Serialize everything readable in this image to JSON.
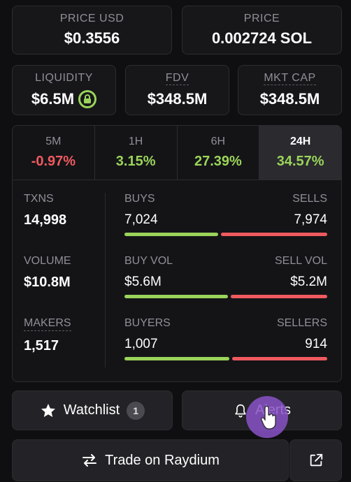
{
  "price_usd": {
    "label": "PRICE USD",
    "value": "$0.3556"
  },
  "price_sol": {
    "label": "PRICE",
    "value": "0.002724 SOL"
  },
  "liquidity": {
    "label": "LIQUIDITY",
    "value": "$6.5M"
  },
  "fdv": {
    "label": "FDV",
    "value": "$348.5M"
  },
  "mkt_cap": {
    "label": "MKT CAP",
    "value": "$348.5M"
  },
  "tabs": [
    {
      "label": "5M",
      "value": "-0.97%"
    },
    {
      "label": "1H",
      "value": "3.15%"
    },
    {
      "label": "6H",
      "value": "27.39%"
    },
    {
      "label": "24H",
      "value": "34.57%"
    }
  ],
  "txns": {
    "label": "TXNS",
    "value": "14,998",
    "buys_label": "BUYS",
    "buys": "7,024",
    "sells_label": "SELLS",
    "sells": "7,974",
    "buy_ratio": 0.468
  },
  "volume": {
    "label": "VOLUME",
    "value": "$10.8M",
    "buys_label": "BUY VOL",
    "buys": "$5.6M",
    "sells_label": "SELL VOL",
    "sells": "$5.2M",
    "buy_ratio": 0.518
  },
  "makers": {
    "label": "MAKERS",
    "value": "1,517",
    "buys_label": "BUYERS",
    "buys": "1,007",
    "sells_label": "SELLERS",
    "sells": "914",
    "buy_ratio": 0.524
  },
  "watchlist": {
    "label": "Watchlist",
    "count": "1"
  },
  "alerts": {
    "label": "Alerts"
  },
  "trade": {
    "label": "Trade on Raydium"
  },
  "colors": {
    "buy": "#9bd45a",
    "sell": "#ef5a5f",
    "accent_cursor": "#8a52c8"
  }
}
